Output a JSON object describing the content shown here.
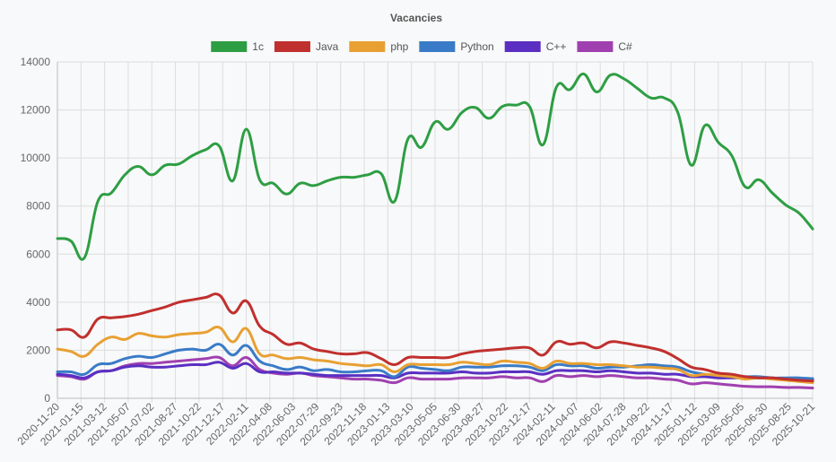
{
  "chart_data": {
    "type": "line",
    "title": "Vacancies",
    "xlabel": "",
    "ylabel": "",
    "ylim": [
      0,
      14000
    ],
    "yticks": [
      0,
      2000,
      4000,
      6000,
      8000,
      10000,
      12000,
      14000
    ],
    "grid": true,
    "legend_position": "top",
    "x_tick_labels": [
      "2020-11-20",
      "2021-01-15",
      "2021-03-12",
      "2021-05-07",
      "2021-07-02",
      "2021-08-27",
      "2021-10-22",
      "2021-12-17",
      "2022-02-11",
      "2022-04-08",
      "2022-06-03",
      "2022-07-29",
      "2022-09-23",
      "2022-11-18",
      "2023-01-13",
      "2023-03-10",
      "2023-05-05",
      "2023-06-30",
      "2023-08-27",
      "2023-10-22",
      "2023-12-17",
      "2024-02-11",
      "2024-04-07",
      "2024-06-02",
      "2024-07-28",
      "2024-09-22",
      "2024-11-17",
      "2025-01-12",
      "2025-03-09",
      "2025-05-05",
      "2025-06-30",
      "2025-08-25",
      "2025-10-21"
    ],
    "series": [
      {
        "name": "1c",
        "color": "#2e9e44",
        "values": [
          6650,
          6550,
          5850,
          8200,
          8550,
          9300,
          9650,
          9300,
          9700,
          9750,
          10100,
          10350,
          10500,
          9050,
          11200,
          9100,
          8950,
          8500,
          8950,
          8850,
          9050,
          9200,
          9200,
          9300,
          9350,
          8200,
          10800,
          10450,
          11500,
          11200,
          11900,
          12100,
          11650,
          12150,
          12200,
          12150,
          10550,
          12950,
          12850,
          13500,
          12750,
          13450,
          13300,
          12900,
          12500,
          12500,
          11900,
          9700,
          11350,
          10650,
          10100,
          8800,
          9100,
          8550,
          8050,
          7700,
          7050
        ]
      },
      {
        "name": "Java",
        "color": "#c0302e",
        "values": [
          2850,
          2850,
          2550,
          3300,
          3350,
          3400,
          3500,
          3650,
          3800,
          4000,
          4100,
          4200,
          4300,
          3550,
          4050,
          3000,
          2650,
          2250,
          2300,
          2050,
          1950,
          1850,
          1850,
          1900,
          1650,
          1400,
          1700,
          1700,
          1700,
          1700,
          1850,
          1950,
          2000,
          2050,
          2100,
          2100,
          1800,
          2350,
          2250,
          2300,
          2100,
          2350,
          2300,
          2200,
          2100,
          1950,
          1650,
          1300,
          1200,
          1050,
          1000,
          900,
          850,
          850,
          800,
          750,
          720
        ]
      },
      {
        "name": "php",
        "color": "#e8a033",
        "values": [
          2050,
          1950,
          1750,
          2250,
          2550,
          2450,
          2700,
          2600,
          2550,
          2650,
          2700,
          2750,
          2950,
          2350,
          2900,
          1850,
          1800,
          1650,
          1700,
          1600,
          1550,
          1450,
          1400,
          1350,
          1400,
          1100,
          1400,
          1400,
          1400,
          1400,
          1500,
          1450,
          1400,
          1550,
          1500,
          1450,
          1250,
          1550,
          1450,
          1450,
          1400,
          1400,
          1350,
          1300,
          1300,
          1250,
          1200,
          950,
          1000,
          950,
          900,
          800,
          850,
          800,
          750,
          700,
          650
        ]
      },
      {
        "name": "Python",
        "color": "#3a7bc8",
        "values": [
          1100,
          1100,
          1000,
          1400,
          1450,
          1650,
          1750,
          1700,
          1850,
          2000,
          2050,
          2000,
          2250,
          1800,
          2200,
          1550,
          1350,
          1200,
          1300,
          1150,
          1200,
          1100,
          1100,
          1150,
          1150,
          900,
          1300,
          1250,
          1200,
          1150,
          1300,
          1300,
          1300,
          1350,
          1350,
          1300,
          1150,
          1400,
          1350,
          1350,
          1250,
          1300,
          1300,
          1350,
          1400,
          1350,
          1300,
          1100,
          1000,
          950,
          900,
          900,
          900,
          850,
          850,
          850,
          820
        ]
      },
      {
        "name": "C++",
        "color": "#5a2fc2",
        "values": [
          1000,
          950,
          850,
          1100,
          1150,
          1300,
          1350,
          1300,
          1300,
          1350,
          1400,
          1400,
          1500,
          1250,
          1450,
          1100,
          1100,
          1050,
          1050,
          1000,
          950,
          950,
          950,
          950,
          950,
          850,
          1050,
          1050,
          1050,
          1050,
          1100,
          1050,
          1050,
          1100,
          1100,
          1100,
          1000,
          1150,
          1150,
          1150,
          1100,
          1150,
          1100,
          1050,
          1050,
          1000,
          1000,
          900,
          900,
          850,
          850,
          850,
          850,
          850,
          800,
          800,
          780
        ]
      },
      {
        "name": "C#",
        "color": "#a040b0",
        "values": [
          950,
          900,
          800,
          1100,
          1150,
          1350,
          1450,
          1450,
          1500,
          1550,
          1600,
          1650,
          1700,
          1350,
          1700,
          1200,
          1050,
          1000,
          1050,
          950,
          900,
          850,
          800,
          800,
          750,
          650,
          850,
          800,
          800,
          800,
          850,
          850,
          850,
          900,
          850,
          850,
          700,
          950,
          900,
          950,
          900,
          950,
          900,
          850,
          850,
          800,
          750,
          600,
          650,
          600,
          550,
          500,
          480,
          480,
          450,
          450,
          430
        ]
      }
    ]
  }
}
